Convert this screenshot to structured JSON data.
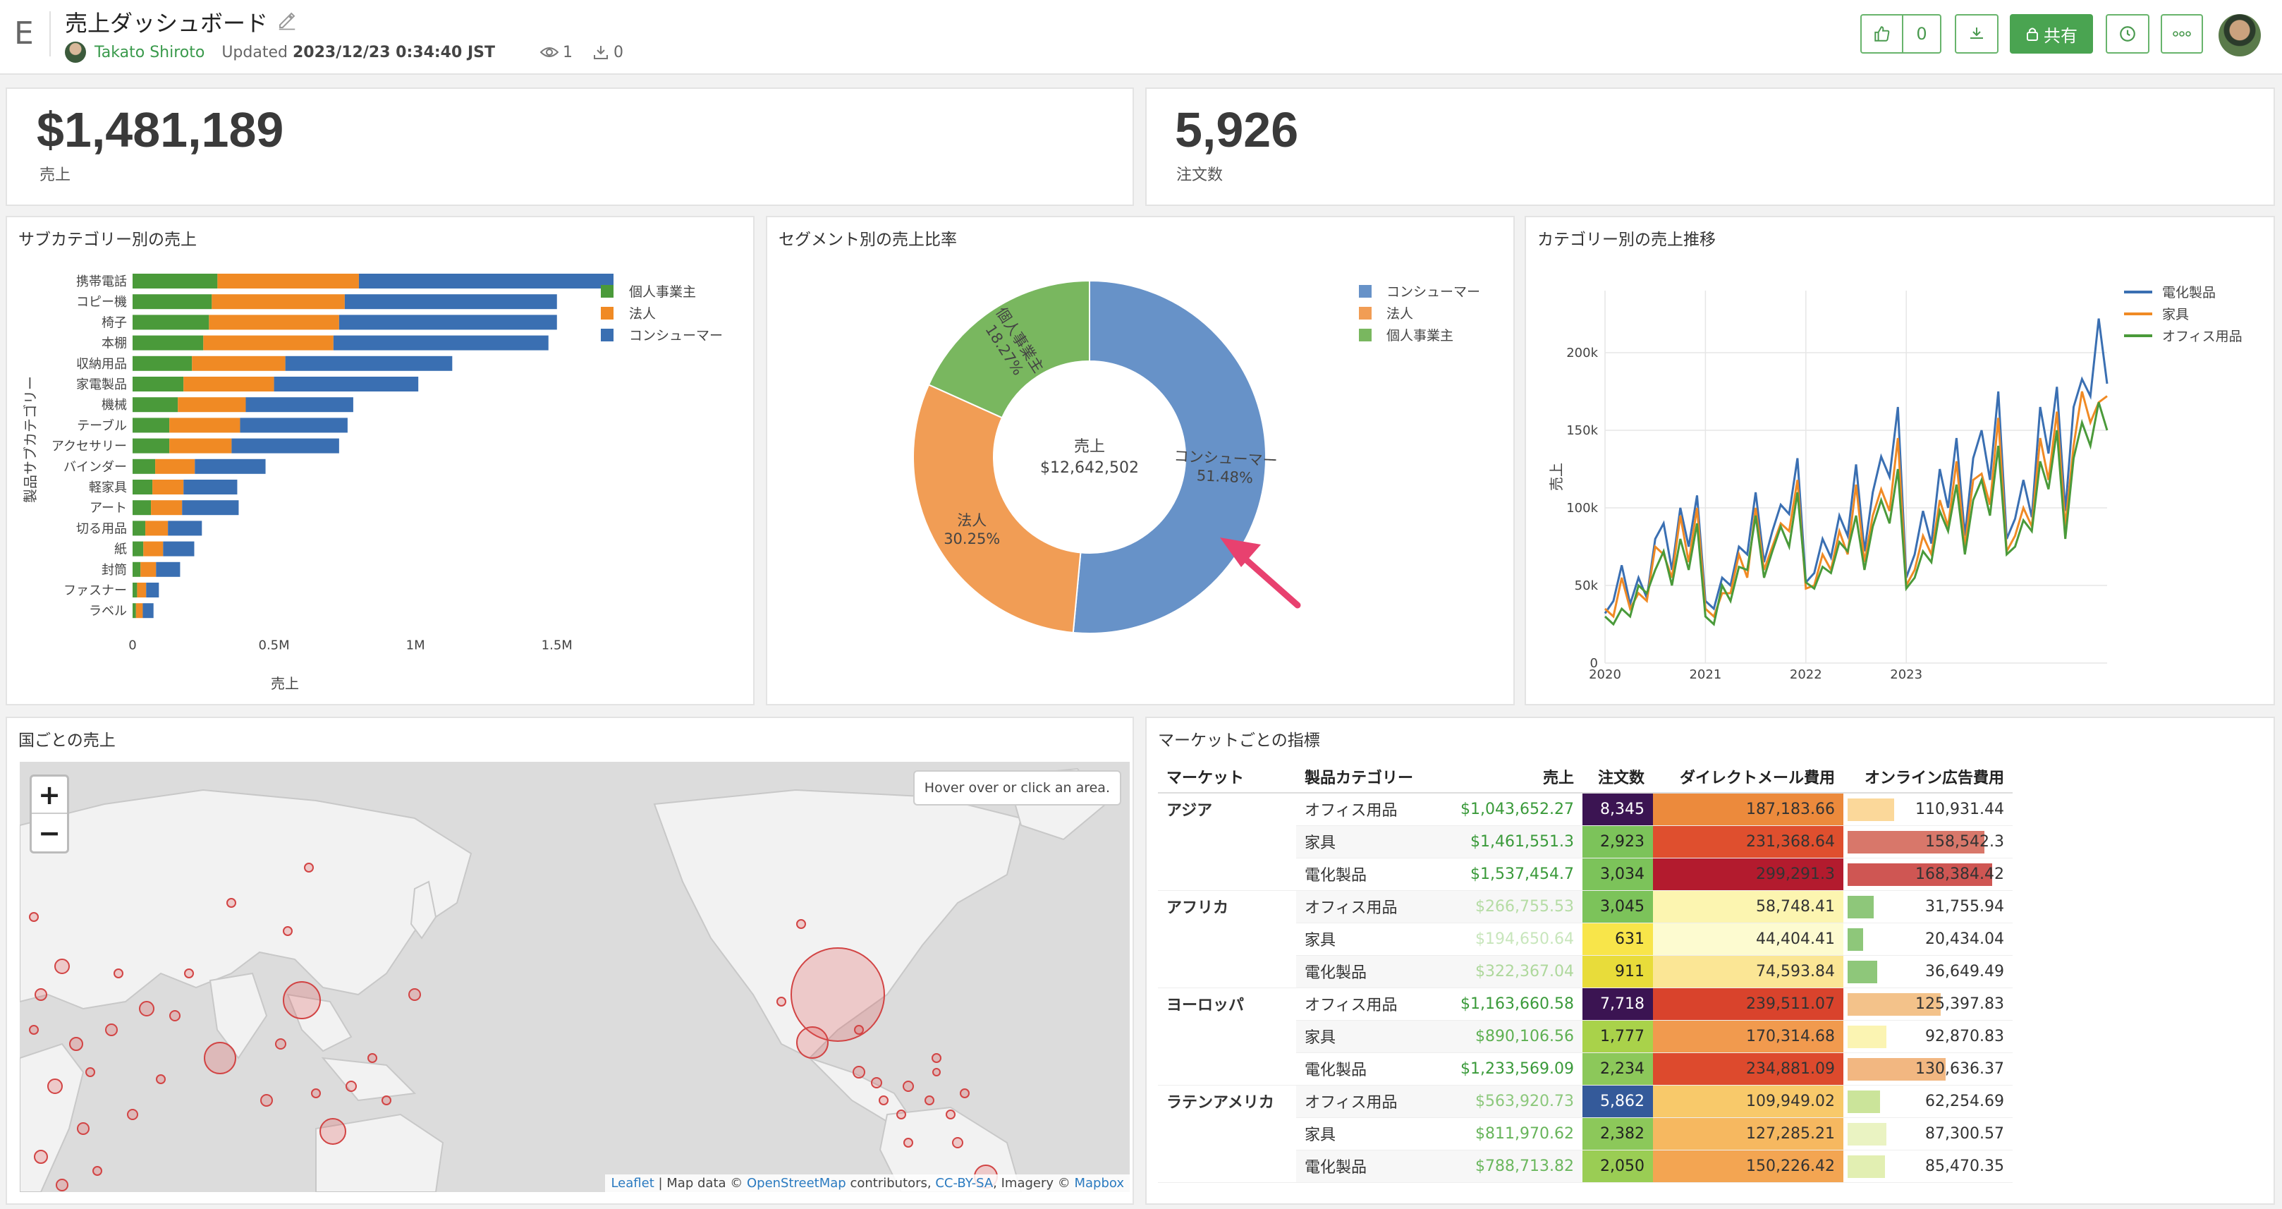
{
  "header": {
    "logo": "E",
    "title": "売上ダッシュボード",
    "author": "Takato Shiroto",
    "updated_label": "Updated",
    "updated_value": "2023/12/23 0:34:40 JST",
    "views": "1",
    "downloads": "0",
    "like_count": "0",
    "share_label": "共有"
  },
  "kpis": [
    {
      "value": "$1,481,189",
      "label": "売上"
    },
    {
      "value": "5,926",
      "label": "注文数"
    }
  ],
  "panels": {
    "subcategory_title": "サブカテゴリー別の売上",
    "segment_title": "セグメント別の売上比率",
    "trend_title": "カテゴリー別の売上推移",
    "map_title": "国ごとの売上",
    "market_title": "マーケットごとの指標"
  },
  "chart_data": [
    {
      "type": "bar",
      "orientation": "horizontal",
      "stacked": true,
      "xlabel": "売上",
      "ylabel": "製品サブカテゴリー",
      "xlim": [
        0,
        1700000
      ],
      "xticks": [
        "0",
        "0.5M",
        "1M",
        "1.5M"
      ],
      "xtick_values": [
        0,
        500000,
        1000000,
        1500000
      ],
      "categories": [
        "携帯電話",
        "コピー機",
        "椅子",
        "本棚",
        "収納用品",
        "家電製品",
        "機械",
        "テーブル",
        "アクセサリー",
        "バインダー",
        "軽家具",
        "アート",
        "切る用品",
        "紙",
        "封筒",
        "ファスナー",
        "ラベル"
      ],
      "series": [
        {
          "name": "個人事業主",
          "color": "#4a9a3a",
          "values": [
            300000,
            280000,
            270000,
            250000,
            210000,
            180000,
            160000,
            130000,
            130000,
            80000,
            70000,
            65000,
            45000,
            38000,
            28000,
            16000,
            12000
          ]
        },
        {
          "name": "法人",
          "color": "#f08a24",
          "values": [
            500000,
            470000,
            460000,
            460000,
            330000,
            320000,
            240000,
            250000,
            220000,
            140000,
            110000,
            110000,
            80000,
            70000,
            55000,
            32000,
            24000
          ]
        },
        {
          "name": "コンシューマー",
          "color": "#3a6fb2",
          "values": [
            900000,
            750000,
            770000,
            760000,
            590000,
            510000,
            380000,
            380000,
            380000,
            250000,
            190000,
            200000,
            120000,
            110000,
            85000,
            45000,
            38000
          ]
        }
      ],
      "legend": "top-right"
    },
    {
      "type": "pie",
      "donut": true,
      "center_label": "売上",
      "center_value": "$12,642,502",
      "slices": [
        {
          "name": "コンシューマー",
          "percent_label": "51.48%",
          "value": 51.48,
          "color": "#6792c8"
        },
        {
          "name": "法人",
          "percent_label": "30.25%",
          "value": 30.25,
          "color": "#f19d55"
        },
        {
          "name": "個人事業主",
          "percent_label": "18.27%",
          "value": 18.27,
          "color": "#79b75f"
        }
      ],
      "legend": "top-right"
    },
    {
      "type": "line",
      "ylabel": "売上",
      "ylim": [
        0,
        240000
      ],
      "yticks": [
        "0",
        "50k",
        "100k",
        "150k",
        "200k"
      ],
      "ytick_values": [
        0,
        50000,
        100000,
        150000,
        200000
      ],
      "x_start": "2020-01",
      "xticks": [
        "2020",
        "2021",
        "2022",
        "2023"
      ],
      "legend": "top-right",
      "series": [
        {
          "name": "電化製品",
          "color": "#3a6fb2",
          "values": [
            32000,
            40000,
            63000,
            38000,
            55000,
            42000,
            80000,
            90000,
            60000,
            100000,
            75000,
            108000,
            40000,
            35000,
            55000,
            50000,
            75000,
            70000,
            110000,
            65000,
            85000,
            102000,
            96000,
            132000,
            52000,
            58000,
            80000,
            68000,
            95000,
            82000,
            128000,
            72000,
            110000,
            133000,
            120000,
            165000,
            55000,
            70000,
            98000,
            77000,
            125000,
            100000,
            145000,
            82000,
            132000,
            150000,
            118000,
            175000,
            80000,
            93000,
            118000,
            94000,
            165000,
            135000,
            178000,
            98000,
            165000,
            183000,
            172000,
            222000,
            180000
          ]
        },
        {
          "name": "家具",
          "color": "#f08a24",
          "values": [
            35000,
            30000,
            55000,
            35000,
            45000,
            40000,
            75000,
            70000,
            55000,
            95000,
            65000,
            100000,
            35000,
            30000,
            45000,
            45000,
            70000,
            55000,
            100000,
            60000,
            75000,
            90000,
            85000,
            118000,
            48000,
            50000,
            70000,
            60000,
            85000,
            70000,
            115000,
            65000,
            95000,
            112000,
            98000,
            145000,
            50000,
            60000,
            82000,
            70000,
            105000,
            88000,
            130000,
            75000,
            118000,
            122000,
            102000,
            158000,
            72000,
            82000,
            100000,
            88000,
            145000,
            118000,
            162000,
            88000,
            140000,
            175000,
            155000,
            168000,
            172000
          ]
        },
        {
          "name": "オフィス用品",
          "color": "#4a9a3a",
          "values": [
            30000,
            25000,
            35000,
            30000,
            50000,
            45000,
            60000,
            72000,
            50000,
            80000,
            60000,
            90000,
            30000,
            25000,
            50000,
            40000,
            62000,
            60000,
            95000,
            55000,
            72000,
            88000,
            75000,
            110000,
            52000,
            48000,
            62000,
            58000,
            78000,
            72000,
            95000,
            60000,
            88000,
            105000,
            90000,
            125000,
            48000,
            55000,
            72000,
            65000,
            98000,
            85000,
            115000,
            70000,
            105000,
            118000,
            95000,
            140000,
            70000,
            75000,
            92000,
            85000,
            130000,
            112000,
            150000,
            80000,
            132000,
            155000,
            140000,
            168000,
            150000
          ]
        }
      ]
    }
  ],
  "map": {
    "zoom_in": "+",
    "zoom_out": "−",
    "hover_hint": "Hover over or click an area.",
    "attribution_leaflet": "Leaflet",
    "attribution_text1": " | Map data © ",
    "attribution_osm": "OpenStreetMap",
    "attribution_text2": " contributors, ",
    "attribution_ccbysa": "CC-BY-SA",
    "attribution_text3": ", Imagery © ",
    "attribution_mapbox": "Mapbox"
  },
  "market_table": {
    "headers": [
      "マーケット",
      "製品カテゴリー",
      "売上",
      "注文数",
      "ダイレクトメール費用",
      "オンライン広告費用"
    ],
    "groups": [
      {
        "market": "アジア",
        "rows": [
          {
            "category": "オフィス用品",
            "sales": "$1,043,652.27",
            "orders": "8,345",
            "dm": "187,183.66",
            "online": "110,931.44",
            "sales_color": "#3a9a3a",
            "orders_bg": "#3b1452",
            "orders_fg": "#ffffff",
            "dm_bg": "#ec8a3c",
            "online_bg": "#fbd89a",
            "online_frac": 0.3
          },
          {
            "category": "家具",
            "sales": "$1,461,551.3",
            "orders": "2,923",
            "dm": "231,368.64",
            "online": "158,542.3",
            "sales_color": "#3a9a3a",
            "orders_bg": "#7cc35a",
            "orders_fg": "#222",
            "dm_bg": "#df4f2e",
            "online_bg": "#d8776a",
            "online_frac": 0.88
          },
          {
            "category": "電化製品",
            "sales": "$1,537,454.7",
            "orders": "3,034",
            "dm": "299,291.3",
            "online": "168,384.42",
            "sales_color": "#3a9a3a",
            "orders_bg": "#7cc35a",
            "orders_fg": "#222",
            "dm_bg": "#b31b2e",
            "online_bg": "#cf5653",
            "online_frac": 0.93
          }
        ]
      },
      {
        "market": "アフリカ",
        "rows": [
          {
            "category": "オフィス用品",
            "sales": "$266,755.53",
            "orders": "3,045",
            "dm": "58,748.41",
            "online": "31,755.94",
            "sales_color": "#b5dca4",
            "orders_bg": "#7cc35a",
            "orders_fg": "#222",
            "dm_bg": "#fcf5b0",
            "online_bg": "#8ec77a",
            "online_frac": 0.17
          },
          {
            "category": "家具",
            "sales": "$194,650.64",
            "orders": "631",
            "dm": "44,404.41",
            "online": "20,434.04",
            "sales_color": "#c8e6bc",
            "orders_bg": "#f8e54a",
            "orders_fg": "#222",
            "dm_bg": "#fdfbd0",
            "online_bg": "#8ec77a",
            "online_frac": 0.1
          },
          {
            "category": "電化製品",
            "sales": "$322,367.04",
            "orders": "911",
            "dm": "74,593.84",
            "online": "36,649.49",
            "sales_color": "#aed89c",
            "orders_bg": "#e8dc3a",
            "orders_fg": "#222",
            "dm_bg": "#fbe695",
            "online_bg": "#8ec77a",
            "online_frac": 0.19
          }
        ]
      },
      {
        "market": "ヨーロッパ",
        "rows": [
          {
            "category": "オフィス用品",
            "sales": "$1,163,660.58",
            "orders": "7,718",
            "dm": "239,511.07",
            "online": "125,397.83",
            "sales_color": "#3a9a3a",
            "orders_bg": "#3b1452",
            "orders_fg": "#ffffff",
            "dm_bg": "#d9432c",
            "online_bg": "#f3c28a",
            "online_frac": 0.6
          },
          {
            "category": "家具",
            "sales": "$890,106.56",
            "orders": "1,777",
            "dm": "170,314.68",
            "online": "92,870.83",
            "sales_color": "#5eb052",
            "orders_bg": "#a9d24a",
            "orders_fg": "#222",
            "dm_bg": "#f19a4e",
            "online_bg": "#fbf4b2",
            "online_frac": 0.25
          },
          {
            "category": "電化製品",
            "sales": "$1,233,569.09",
            "orders": "2,234",
            "dm": "234,881.09",
            "online": "130,636.37",
            "sales_color": "#3a9a3a",
            "orders_bg": "#8cc85a",
            "orders_fg": "#222",
            "dm_bg": "#dd4a2d",
            "online_bg": "#f2b781",
            "online_frac": 0.63
          }
        ]
      },
      {
        "market": "ラテンアメリカ",
        "rows": [
          {
            "category": "オフィス用品",
            "sales": "$563,920.73",
            "orders": "5,862",
            "dm": "109,949.02",
            "online": "62,254.69",
            "sales_color": "#8cc87c",
            "orders_bg": "#345a9a",
            "orders_fg": "#ffffff",
            "dm_bg": "#f8c96a",
            "online_bg": "#cbe49a",
            "online_frac": 0.21
          },
          {
            "category": "家具",
            "sales": "$811,970.62",
            "orders": "2,382",
            "dm": "127,285.21",
            "online": "87,300.57",
            "sales_color": "#67b45a",
            "orders_bg": "#8cc85a",
            "orders_fg": "#222",
            "dm_bg": "#f6b860",
            "online_bg": "#eaf3c2",
            "online_frac": 0.25
          },
          {
            "category": "電化製品",
            "sales": "$788,713.82",
            "orders": "2,050",
            "dm": "150,226.42",
            "online": "85,470.35",
            "sales_color": "#6bb75e",
            "orders_bg": "#9acd54",
            "orders_fg": "#222",
            "dm_bg": "#f3a552",
            "online_bg": "#e2efb2",
            "online_frac": 0.24
          }
        ]
      }
    ]
  },
  "colors": {
    "accent": "#4aa451",
    "panel_border": "#e3e3e3"
  }
}
